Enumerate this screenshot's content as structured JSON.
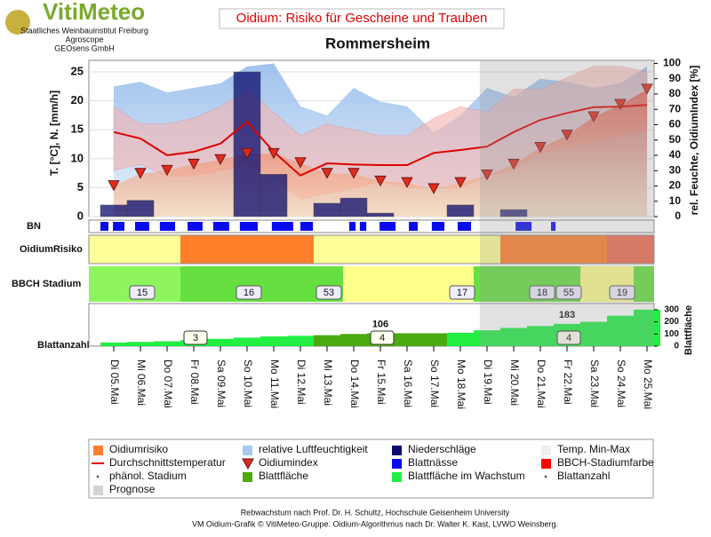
{
  "header": {
    "logo": "VitiMeteo",
    "org_lines": [
      "Staatliches Weinbauinstitut Freiburg",
      "Agroscope",
      "GEOsens GmbH"
    ]
  },
  "chart_data": {
    "type": "combo",
    "title": "Oidium: Risiko für Gescheine und Trauben",
    "subtitle": "Rommersheim",
    "categories": [
      "Di 05.Mai",
      "Mi 06.Mai",
      "Do 07.Mai",
      "Fr 08.Mai",
      "Sa 09.Mai",
      "So 10.Mai",
      "Mo 11.Mai",
      "Di 12.Mai",
      "Mi 13.Mai",
      "Do 14.Mai",
      "Fr 15.Mai",
      "Sa 16.Mai",
      "So 17.Mai",
      "Mo 18.Mai",
      "Di 19.Mai",
      "Mi 20.Mai",
      "Do 21.Mai",
      "Fr 22.Mai",
      "Sa 23.Mai",
      "So 24.Mai",
      "Mo 25.Mai"
    ],
    "ylabel": "T. [°C], N. [mm/h]",
    "y2label": "rel. Feuchte, OidiumIndex [%]",
    "ylim": [
      0,
      27
    ],
    "yticks": [
      0,
      5,
      10,
      15,
      20,
      25
    ],
    "y2lim": [
      0,
      102
    ],
    "y2ticks": [
      0,
      10,
      20,
      30,
      40,
      50,
      60,
      70,
      80,
      90,
      100
    ],
    "grid": true,
    "temperature": {
      "color": "#e00000",
      "values": [
        14.6,
        13.5,
        10.6,
        11.2,
        12.6,
        16.4,
        11.2,
        7.1,
        9.2,
        9,
        8.9,
        8.9,
        11,
        11.5,
        12.1,
        14.6,
        16.7,
        17.9,
        18.9,
        19,
        19.3
      ]
    },
    "temp_range": {
      "color": "#f4b4b0",
      "upper": [
        19,
        16,
        16,
        17,
        19,
        22,
        18,
        14,
        16,
        15,
        14,
        14,
        17,
        19,
        18,
        22,
        22,
        24,
        26,
        26,
        25
      ],
      "lower": [
        8,
        9,
        7,
        7,
        8,
        9,
        7,
        3,
        4,
        5,
        6,
        5,
        5,
        5,
        7,
        8,
        11,
        12,
        13,
        14,
        15
      ]
    },
    "humidity": {
      "axis": "y2",
      "color": "#a9c9ee",
      "values": [
        85,
        88,
        81,
        84,
        87,
        98,
        100,
        72,
        66,
        84,
        75,
        72,
        55,
        66,
        84,
        78,
        90,
        88,
        84,
        87,
        98
      ]
    },
    "rain": {
      "color": "#0b0b6e",
      "values": [
        2,
        2.8,
        0,
        0,
        0,
        25,
        7.3,
        0,
        2.3,
        3.2,
        0.6,
        0,
        0,
        2,
        0,
        1.2,
        0,
        0,
        0,
        0,
        0
      ]
    },
    "oidium_index": {
      "axis": "y2",
      "color": "#e02a1a",
      "values": [
        20,
        28,
        30,
        34,
        37,
        41,
        41,
        35,
        28,
        28,
        23,
        22,
        18,
        22,
        27,
        34,
        45,
        53,
        65,
        73,
        83
      ]
    },
    "bn": {
      "label": "BN",
      "color": "#0a0aee",
      "intervals": [
        [
          0,
          0.3
        ],
        [
          0.47,
          0.9
        ],
        [
          1.3,
          1.83
        ],
        [
          2.23,
          2.8
        ],
        [
          3.27,
          3.83
        ],
        [
          4.23,
          4.83
        ],
        [
          5.23,
          5.9
        ],
        [
          6.43,
          7.23
        ],
        [
          7.5,
          7.97
        ],
        [
          9.33,
          9.57
        ],
        [
          9.73,
          9.97
        ],
        [
          10.47,
          11.07
        ],
        [
          11.57,
          11.9
        ],
        [
          12.43,
          12.9
        ],
        [
          13.4,
          13.9
        ],
        [
          15.57,
          16.17
        ],
        [
          16.9,
          17.07
        ]
      ]
    },
    "risk": {
      "label": "OidiumRisiko",
      "levels": [
        1,
        1,
        1,
        2,
        2,
        2,
        2,
        2,
        1,
        1,
        1,
        1,
        1,
        1,
        1,
        2,
        2,
        2,
        2,
        3,
        3
      ],
      "colors": [
        "#ffff99",
        "#ff7f2a",
        "#f06a50"
      ]
    },
    "bbch": {
      "label": "BBCH Stadium",
      "segments": [
        {
          "from": 0,
          "to": 3,
          "color": "#8ef55e"
        },
        {
          "from": 3,
          "to": 9.1,
          "color": "#66e040"
        },
        {
          "from": 9.1,
          "to": 14,
          "color": "#ffff8c"
        },
        {
          "from": 14,
          "to": 18,
          "color": "#66e040"
        },
        {
          "from": 18,
          "to": 20,
          "color": "#ffff8c"
        },
        {
          "from": 20,
          "to": 21,
          "color": "#66e040"
        }
      ],
      "stages": [
        15,
        16,
        53,
        17,
        18,
        55,
        19
      ],
      "stage_days": [
        1,
        5,
        8,
        13,
        16,
        17,
        19
      ]
    },
    "leaf": {
      "label": "Blattanzahl",
      "ylabel": "Blattfläche",
      "ylim": [
        0,
        350
      ],
      "yticks": [
        0,
        100,
        200,
        300
      ],
      "color": "#4aaa10",
      "growing_color": "#22ee44",
      "area": [
        null,
        null,
        null,
        null,
        null,
        null,
        null,
        null,
        90,
        100,
        106,
        106,
        106,
        null,
        null,
        null,
        null,
        null,
        null,
        null,
        null
      ],
      "growing": [
        30,
        35,
        40,
        50,
        60,
        70,
        80,
        85,
        null,
        null,
        null,
        null,
        null,
        110,
        130,
        150,
        165,
        183,
        200,
        250,
        300
      ],
      "labeled_days": [
        10,
        17
      ],
      "counts": [
        3,
        4,
        4
      ],
      "count_days": [
        3,
        10,
        17
      ]
    },
    "prognose_start": 14.23,
    "legend": [
      {
        "name": "Oidiumrisiko",
        "color": "#ff7f2a",
        "symbol": "box"
      },
      {
        "name": "relative Luftfeuchtigkeit",
        "color": "#a9c9ee",
        "symbol": "box"
      },
      {
        "name": "Niederschläge",
        "color": "#0b0b6e",
        "symbol": "box"
      },
      {
        "name": "Temp. Min-Max",
        "color": "#f2eeee",
        "symbol": "box"
      },
      {
        "name": "Durchschnittstemperatur",
        "color": "#e00000",
        "symbol": "line"
      },
      {
        "name": "Oidiumindex",
        "color": "#e02a1a",
        "symbol": "triangle"
      },
      {
        "name": "Blattnässe",
        "color": "#0a0aee",
        "symbol": "box"
      },
      {
        "name": "BBCH-Stadiumfarbe",
        "color": "#ff0000",
        "symbol": "box"
      },
      {
        "name": "phänol. Stadium",
        "color": "#333333",
        "symbol": "dot"
      },
      {
        "name": "Blattfläche",
        "color": "#4aaa10",
        "symbol": "box"
      },
      {
        "name": "Blattfläche im Wachstum",
        "color": "#22ee44",
        "symbol": "box"
      },
      {
        "name": "Blattanzahl",
        "color": "#333333",
        "symbol": "dot"
      },
      {
        "name": "Prognose",
        "color": "#d4d4d4",
        "symbol": "box"
      }
    ]
  },
  "footer": [
    "Rebwachstum nach Prof. Dr. H. Schultz, Hochschule Geisenheim University",
    "VM Oidium-Grafik © VitiMeteo-Gruppe. Oidium-Algorithmus nach Dr. Walter K. Kast, LVWO Weinsberg."
  ]
}
